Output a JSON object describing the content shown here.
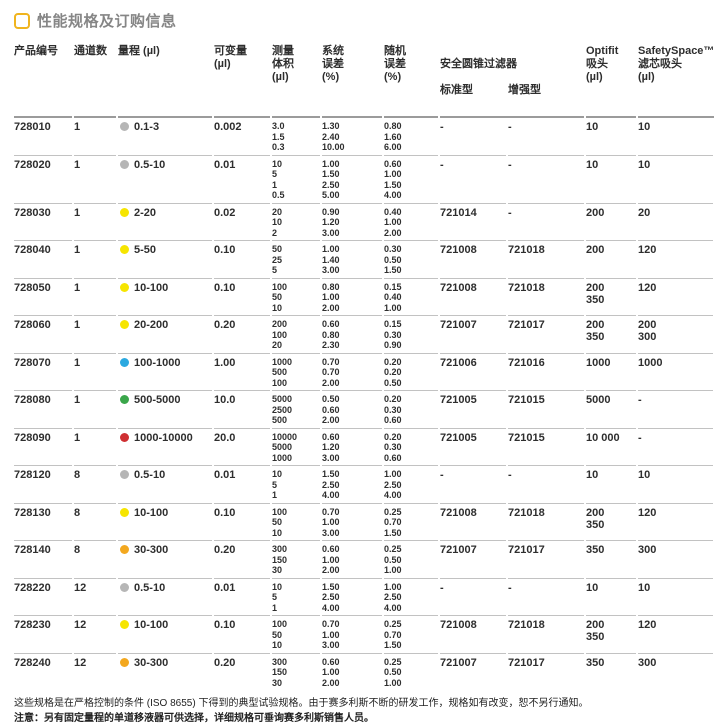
{
  "title": {
    "text": "性能规格及订购信息"
  },
  "table": {
    "headers": {
      "product": "产品编号",
      "channels": "通道数",
      "range": "量程 (µl)",
      "increment": "可变量\n(µl)",
      "test_volume": "测量\n体积\n(µl)",
      "sys_error": "系统\n误差\n(%)",
      "rand_error": "随机\n误差\n(%)",
      "filter_group": "安全圆锥过滤器",
      "filter_std": "标准型",
      "filter_plus": "增强型",
      "optifit": "Optifit\n吸头\n(µl)",
      "safetyspace": "SafetySpace™\n滤芯吸头\n(µl)"
    },
    "dot_legend": {
      "gray": "#b6b6b6",
      "yellow": "#f6e500",
      "blue": "#2ba9e0",
      "green": "#3aa64a",
      "red": "#cf2f32",
      "orange": "#f3a81f"
    },
    "rows": [
      {
        "product": "728010",
        "channels": "1",
        "dot_color": "#b6b6b6",
        "range": "0.1-3",
        "increment": "0.002",
        "volumes": "3.0\n1.5\n0.3",
        "sys_error": "1.30\n2.40\n10.00",
        "rand_error": "0.80\n1.60\n6.00",
        "filter_std": "-",
        "filter_plus": "-",
        "optifit": "10",
        "safetyspace": "10"
      },
      {
        "product": "728020",
        "channels": "1",
        "dot_color": "#b6b6b6",
        "range": "0.5-10",
        "increment": "0.01",
        "volumes": "10\n5\n1\n0.5",
        "sys_error": "1.00\n1.50\n2.50\n5.00",
        "rand_error": "0.60\n1.00\n1.50\n4.00",
        "filter_std": "-",
        "filter_plus": "-",
        "optifit": "10",
        "safetyspace": "10",
        "tall": true
      },
      {
        "product": "728030",
        "channels": "1",
        "dot_color": "#f6e500",
        "range": "2-20",
        "increment": "0.02",
        "volumes": "20\n10\n2",
        "sys_error": "0.90\n1.20\n3.00",
        "rand_error": "0.40\n1.00\n2.00",
        "filter_std": "721014",
        "filter_plus": "-",
        "optifit": "200",
        "safetyspace": "20"
      },
      {
        "product": "728040",
        "channels": "1",
        "dot_color": "#f6e500",
        "range": "5-50",
        "increment": "0.10",
        "volumes": "50\n25\n5",
        "sys_error": "1.00\n1.40\n3.00",
        "rand_error": "0.30\n0.50\n1.50",
        "filter_std": "721008",
        "filter_plus": "721018",
        "optifit": "200",
        "safetyspace": "120"
      },
      {
        "product": "728050",
        "channels": "1",
        "dot_color": "#f6e500",
        "range": "10-100",
        "increment": "0.10",
        "volumes": "100\n50\n10",
        "sys_error": "0.80\n1.00\n2.00",
        "rand_error": "0.15\n0.40\n1.00",
        "filter_std": "721008",
        "filter_plus": "721018",
        "optifit": "200\n350",
        "safetyspace": "120"
      },
      {
        "product": "728060",
        "channels": "1",
        "dot_color": "#f6e500",
        "range": "20-200",
        "increment": "0.20",
        "volumes": "200\n100\n20",
        "sys_error": "0.60\n0.80\n2.30",
        "rand_error": "0.15\n0.30\n0.90",
        "filter_std": "721007",
        "filter_plus": "721017",
        "optifit": "200\n350",
        "safetyspace": "200\n300"
      },
      {
        "product": "728070",
        "channels": "1",
        "dot_color": "#2ba9e0",
        "range": "100-1000",
        "increment": "1.00",
        "volumes": "1000\n500\n100",
        "sys_error": "0.70\n0.70\n2.00",
        "rand_error": "0.20\n0.20\n0.50",
        "filter_std": "721006",
        "filter_plus": "721016",
        "optifit": "1000",
        "safetyspace": "1000"
      },
      {
        "product": "728080",
        "channels": "1",
        "dot_color": "#3aa64a",
        "range": "500-5000",
        "increment": "10.0",
        "volumes": "5000\n2500\n500",
        "sys_error": "0.50\n0.60\n2.00",
        "rand_error": "0.20\n0.30\n0.60",
        "filter_std": "721005",
        "filter_plus": "721015",
        "optifit": "5000",
        "safetyspace": "-"
      },
      {
        "product": "728090",
        "channels": "1",
        "dot_color": "#cf2f32",
        "range": "1000-10000",
        "increment": "20.0",
        "volumes": "10000\n5000\n1000",
        "sys_error": "0.60\n1.20\n3.00",
        "rand_error": "0.20\n0.30\n0.60",
        "filter_std": "721005",
        "filter_plus": "721015",
        "optifit": "10 000",
        "safetyspace": "-"
      },
      {
        "product": "728120",
        "channels": "8",
        "dot_color": "#b6b6b6",
        "range": "0.5-10",
        "increment": "0.01",
        "volumes": "10\n5\n1",
        "sys_error": "1.50\n2.50\n4.00",
        "rand_error": "1.00\n2.50\n4.00",
        "filter_std": "-",
        "filter_plus": "-",
        "optifit": "10",
        "safetyspace": "10"
      },
      {
        "product": "728130",
        "channels": "8",
        "dot_color": "#f6e500",
        "range": "10-100",
        "increment": "0.10",
        "volumes": "100\n50\n10",
        "sys_error": "0.70\n1.00\n3.00",
        "rand_error": "0.25\n0.70\n1.50",
        "filter_std": "721008",
        "filter_plus": "721018",
        "optifit": "200\n350",
        "safetyspace": "120"
      },
      {
        "product": "728140",
        "channels": "8",
        "dot_color": "#f3a81f",
        "range": "30-300",
        "increment": "0.20",
        "volumes": "300\n150\n30",
        "sys_error": "0.60\n1.00\n2.00",
        "rand_error": "0.25\n0.50\n1.00",
        "filter_std": "721007",
        "filter_plus": "721017",
        "optifit": "350",
        "safetyspace": "300"
      },
      {
        "product": "728220",
        "channels": "12",
        "dot_color": "#b6b6b6",
        "range": "0.5-10",
        "increment": "0.01",
        "volumes": "10\n5\n1",
        "sys_error": "1.50\n2.50\n4.00",
        "rand_error": "1.00\n2.50\n4.00",
        "filter_std": "-",
        "filter_plus": "-",
        "optifit": "10",
        "safetyspace": "10"
      },
      {
        "product": "728230",
        "channels": "12",
        "dot_color": "#f6e500",
        "range": "10-100",
        "increment": "0.10",
        "volumes": "100\n50\n10",
        "sys_error": "0.70\n1.00\n3.00",
        "rand_error": "0.25\n0.70\n1.50",
        "filter_std": "721008",
        "filter_plus": "721018",
        "optifit": "200\n350",
        "safetyspace": "120"
      },
      {
        "product": "728240",
        "channels": "12",
        "dot_color": "#f3a81f",
        "range": "30-300",
        "increment": "0.20",
        "volumes": "300\n150\n30",
        "sys_error": "0.60\n1.00\n2.00",
        "rand_error": "0.25\n0.50\n1.00",
        "filter_std": "721007",
        "filter_plus": "721017",
        "optifit": "350",
        "safetyspace": "300"
      }
    ]
  },
  "footer": {
    "note1": "这些规格是在严格控制的条件 (ISO 8655) 下得到的典型试验规格。由于赛多利斯不断的研发工作，规格如有改变，恕不另行通知。",
    "note2": "注意：另有固定量程的单道移液器可供选择，详细规格可垂询赛多利斯销售人员。"
  },
  "colors": {
    "accent_gold": "#f0b41e",
    "title_gray": "#868686",
    "header_rule": "#9b9b9b",
    "row_rule": "#c2c2c2"
  }
}
